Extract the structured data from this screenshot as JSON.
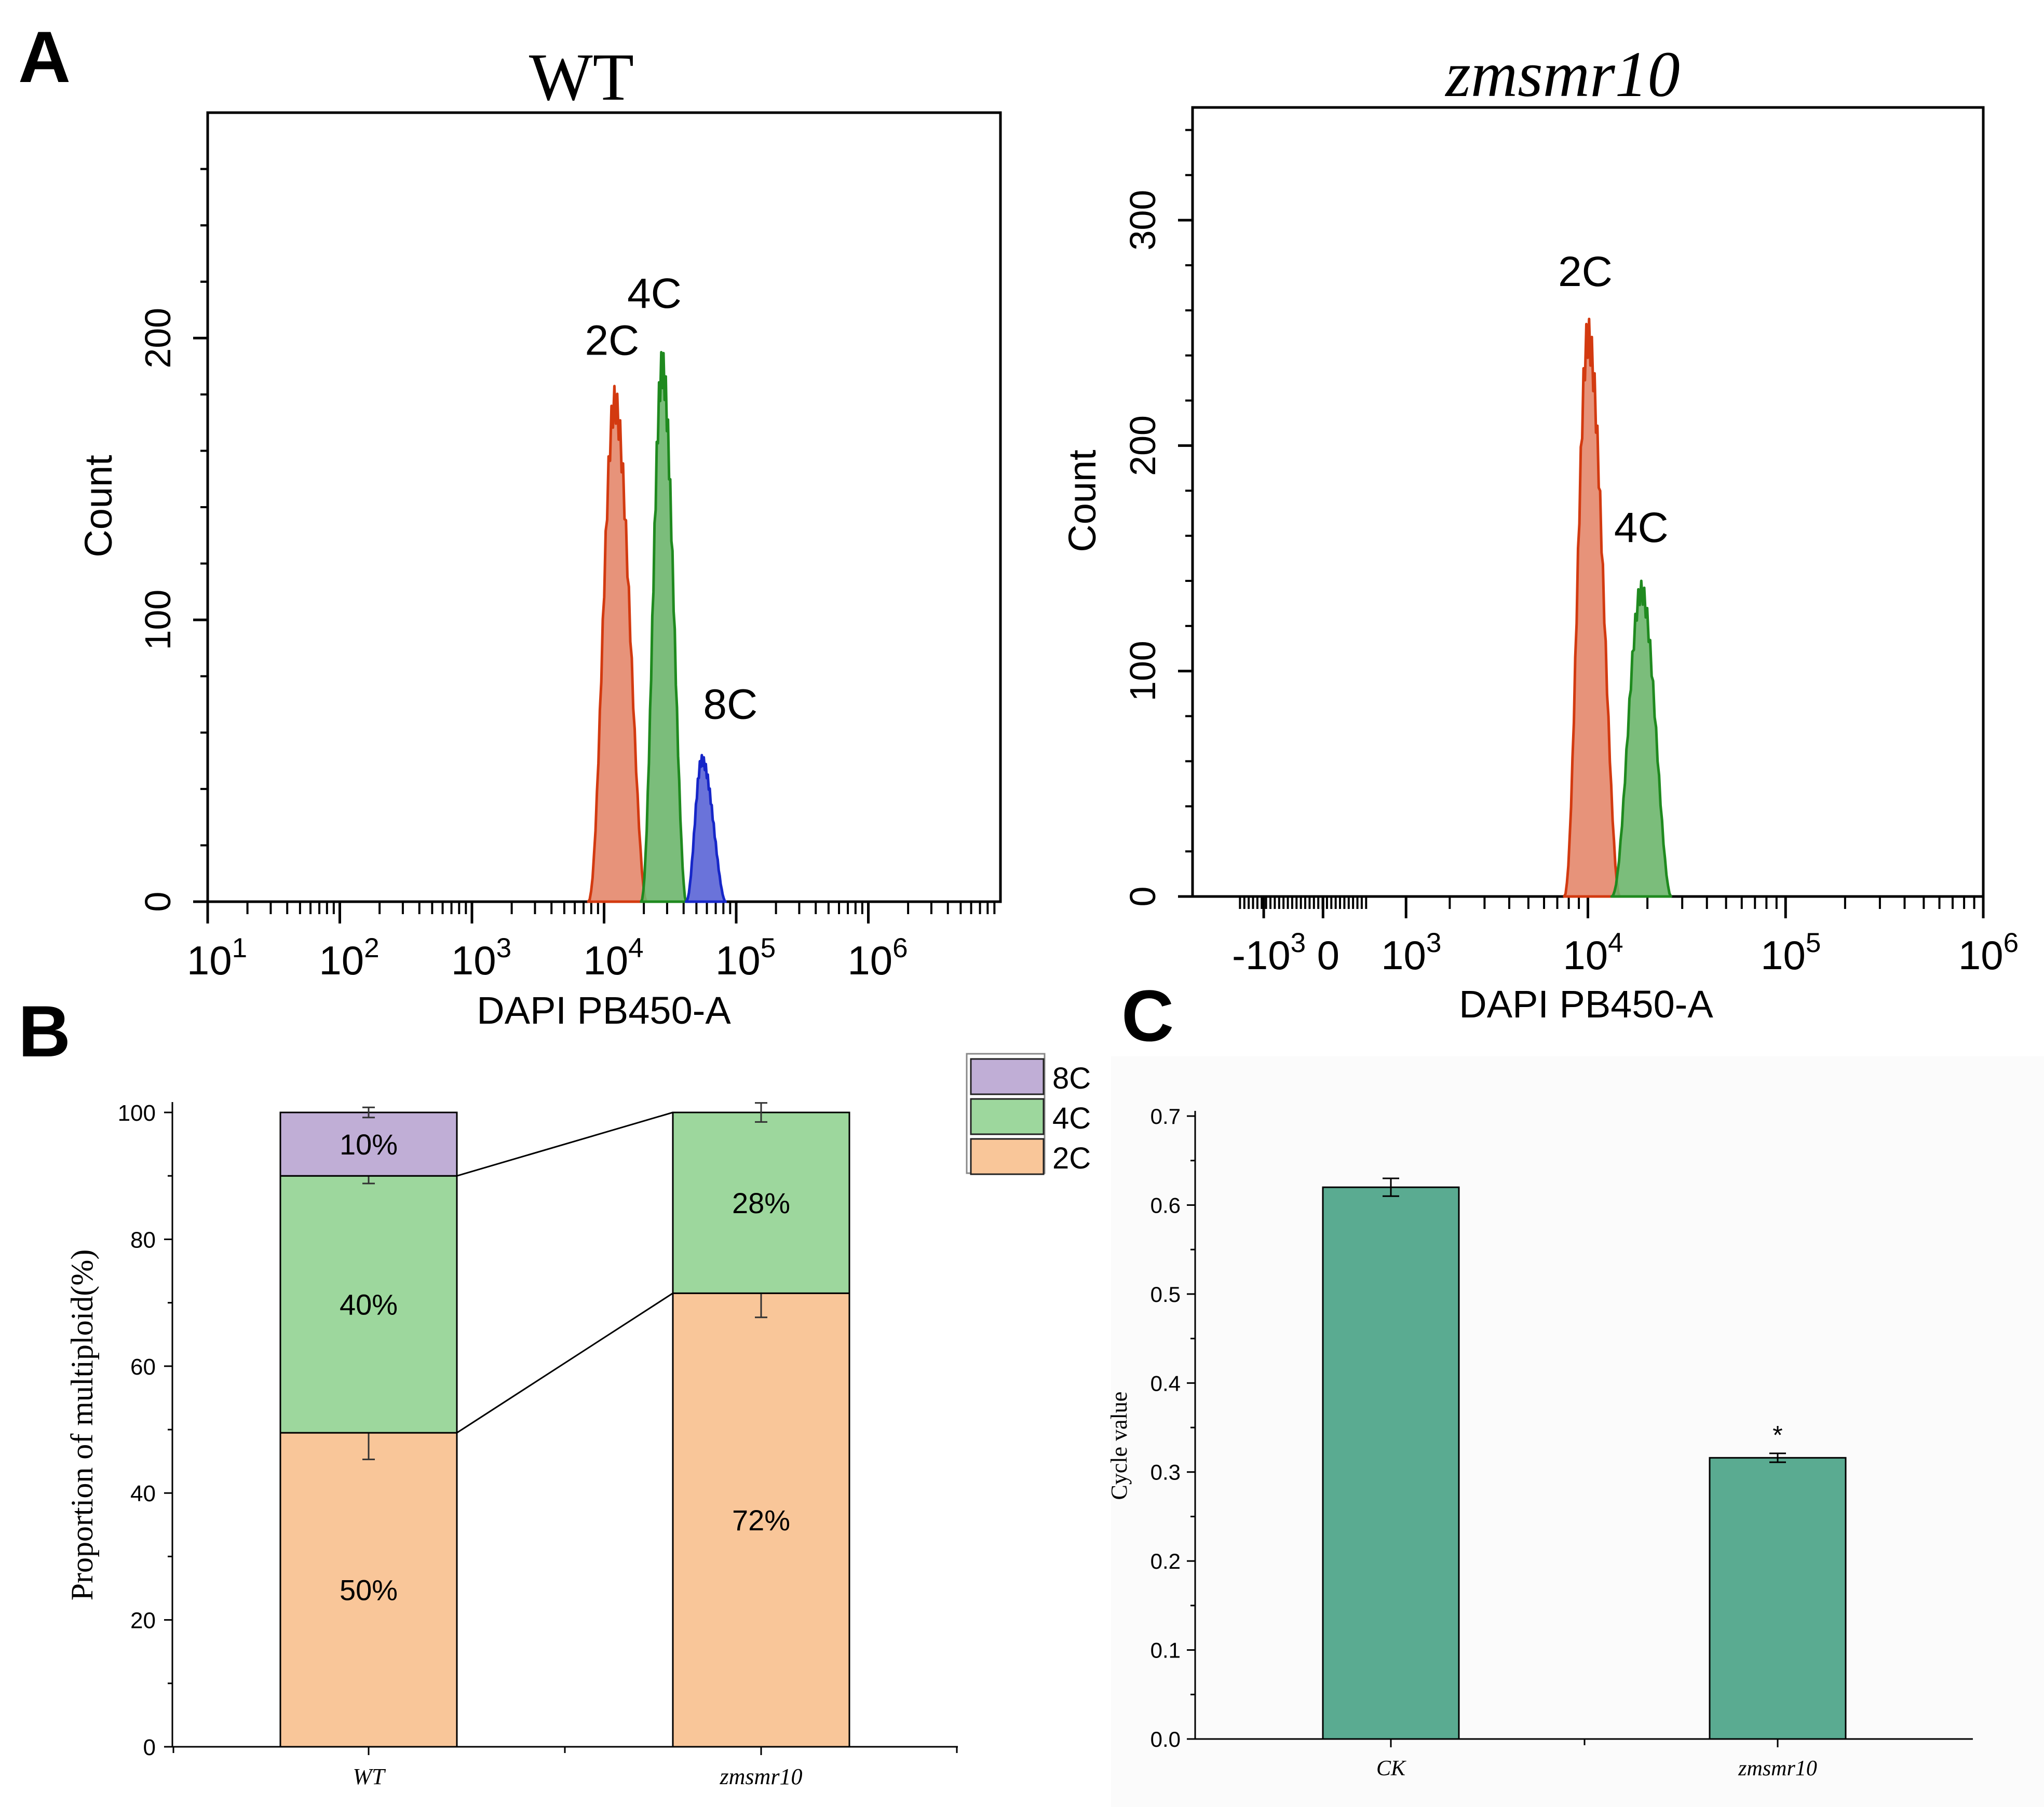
{
  "panels": {
    "a": {
      "label": "A"
    },
    "b": {
      "label": "B"
    },
    "c": {
      "label": "C"
    }
  },
  "colors": {
    "c2_fill": "#F9C699",
    "c4_fill": "#9DD79D",
    "c8_fill": "#C0AED6",
    "c_bar": "#5AAB91",
    "hist_2c": "#E4876B",
    "hist_2c_edge": "#D33A10",
    "hist_4c": "#6DB66D",
    "hist_4c_edge": "#1F8A1F",
    "hist_8c": "#5A64D6",
    "hist_8c_edge": "#1626C8"
  },
  "chart_data": [
    {
      "id": "A-WT",
      "type": "area",
      "title": "WT",
      "xlabel": "DAPI PB450-A",
      "ylabel": "Count",
      "x_scale": "log",
      "xlim_log10": [
        1,
        7
      ],
      "xticks": [
        {
          "log10": 1,
          "base": "10",
          "exp": "1"
        },
        {
          "log10": 2,
          "base": "10",
          "exp": "2"
        },
        {
          "log10": 3,
          "base": "10",
          "exp": "3"
        },
        {
          "log10": 4,
          "base": "10",
          "exp": "4"
        },
        {
          "log10": 5,
          "base": "10",
          "exp": "5"
        },
        {
          "log10": 6,
          "base": "10",
          "exp": "6"
        }
      ],
      "ylim": [
        0,
        280
      ],
      "yticks": [
        0,
        100,
        200
      ],
      "series": [
        {
          "name": "2C",
          "peak_log10": 4.08,
          "peak_count": 183,
          "start_log10": 3.88,
          "end_log10": 4.32
        },
        {
          "name": "4C",
          "peak_log10": 4.44,
          "peak_count": 196,
          "start_log10": 4.28,
          "end_log10": 4.62
        },
        {
          "name": "8C",
          "peak_log10": 4.74,
          "peak_count": 52,
          "start_log10": 4.62,
          "end_log10": 4.92
        }
      ]
    },
    {
      "id": "A-zmsmr10",
      "type": "area",
      "title": "zmsmr10",
      "xlabel": "DAPI PB450-A",
      "ylabel": "Count",
      "x_scale": "biexponential",
      "xticks": [
        {
          "value": "-10",
          "exp": "3",
          "pos": 0.09
        },
        {
          "value": "0",
          "exp": "",
          "pos": 0.165
        },
        {
          "value": "10",
          "exp": "3",
          "pos": 0.27
        },
        {
          "value": "10",
          "exp": "4",
          "pos": 0.5
        },
        {
          "value": "10",
          "exp": "5",
          "pos": 0.75
        },
        {
          "value": "10",
          "exp": "6",
          "pos": 1.0
        }
      ],
      "ylim": [
        0,
        350
      ],
      "yticks": [
        0,
        100,
        200,
        300
      ],
      "series": [
        {
          "name": "2C",
          "peak_log10": 4.0,
          "peak_count": 257,
          "start_log10": 3.88,
          "end_log10": 4.16
        },
        {
          "name": "4C",
          "peak_log10": 4.27,
          "peak_count": 140,
          "start_log10": 4.12,
          "end_log10": 4.42
        }
      ]
    },
    {
      "id": "B",
      "type": "bar",
      "stacked": true,
      "categories": [
        "WT",
        "zmsmr10"
      ],
      "ylabel": "Proportion of multiploid(%)",
      "ylim": [
        0,
        100
      ],
      "yticks": [
        0,
        20,
        40,
        60,
        80,
        100
      ],
      "legend": [
        "8C",
        "4C",
        "2C"
      ],
      "series": [
        {
          "name": "2C",
          "values": [
            49.5,
            71.5
          ],
          "labels": [
            "50%",
            "72%"
          ],
          "errors": [
            4.2,
            3.8
          ]
        },
        {
          "name": "4C",
          "values": [
            40.5,
            28.5
          ],
          "labels": [
            "40%",
            "28%"
          ],
          "errors": [
            1.2,
            1.5
          ]
        },
        {
          "name": "8C",
          "values": [
            10.0,
            0
          ],
          "labels": [
            "10%",
            ""
          ],
          "errors": [
            0.8,
            0
          ]
        }
      ]
    },
    {
      "id": "C",
      "type": "bar",
      "categories": [
        "CK",
        "zmsmr10"
      ],
      "ylabel": "Cycle value",
      "ylim": [
        0,
        0.7
      ],
      "yticks": [
        "0.0",
        "0.1",
        "0.2",
        "0.3",
        "0.4",
        "0.5",
        "0.6",
        "0.7"
      ],
      "values": [
        0.62,
        0.316
      ],
      "errors": [
        0.01,
        0.005
      ],
      "annotations": [
        "",
        "*"
      ]
    }
  ]
}
